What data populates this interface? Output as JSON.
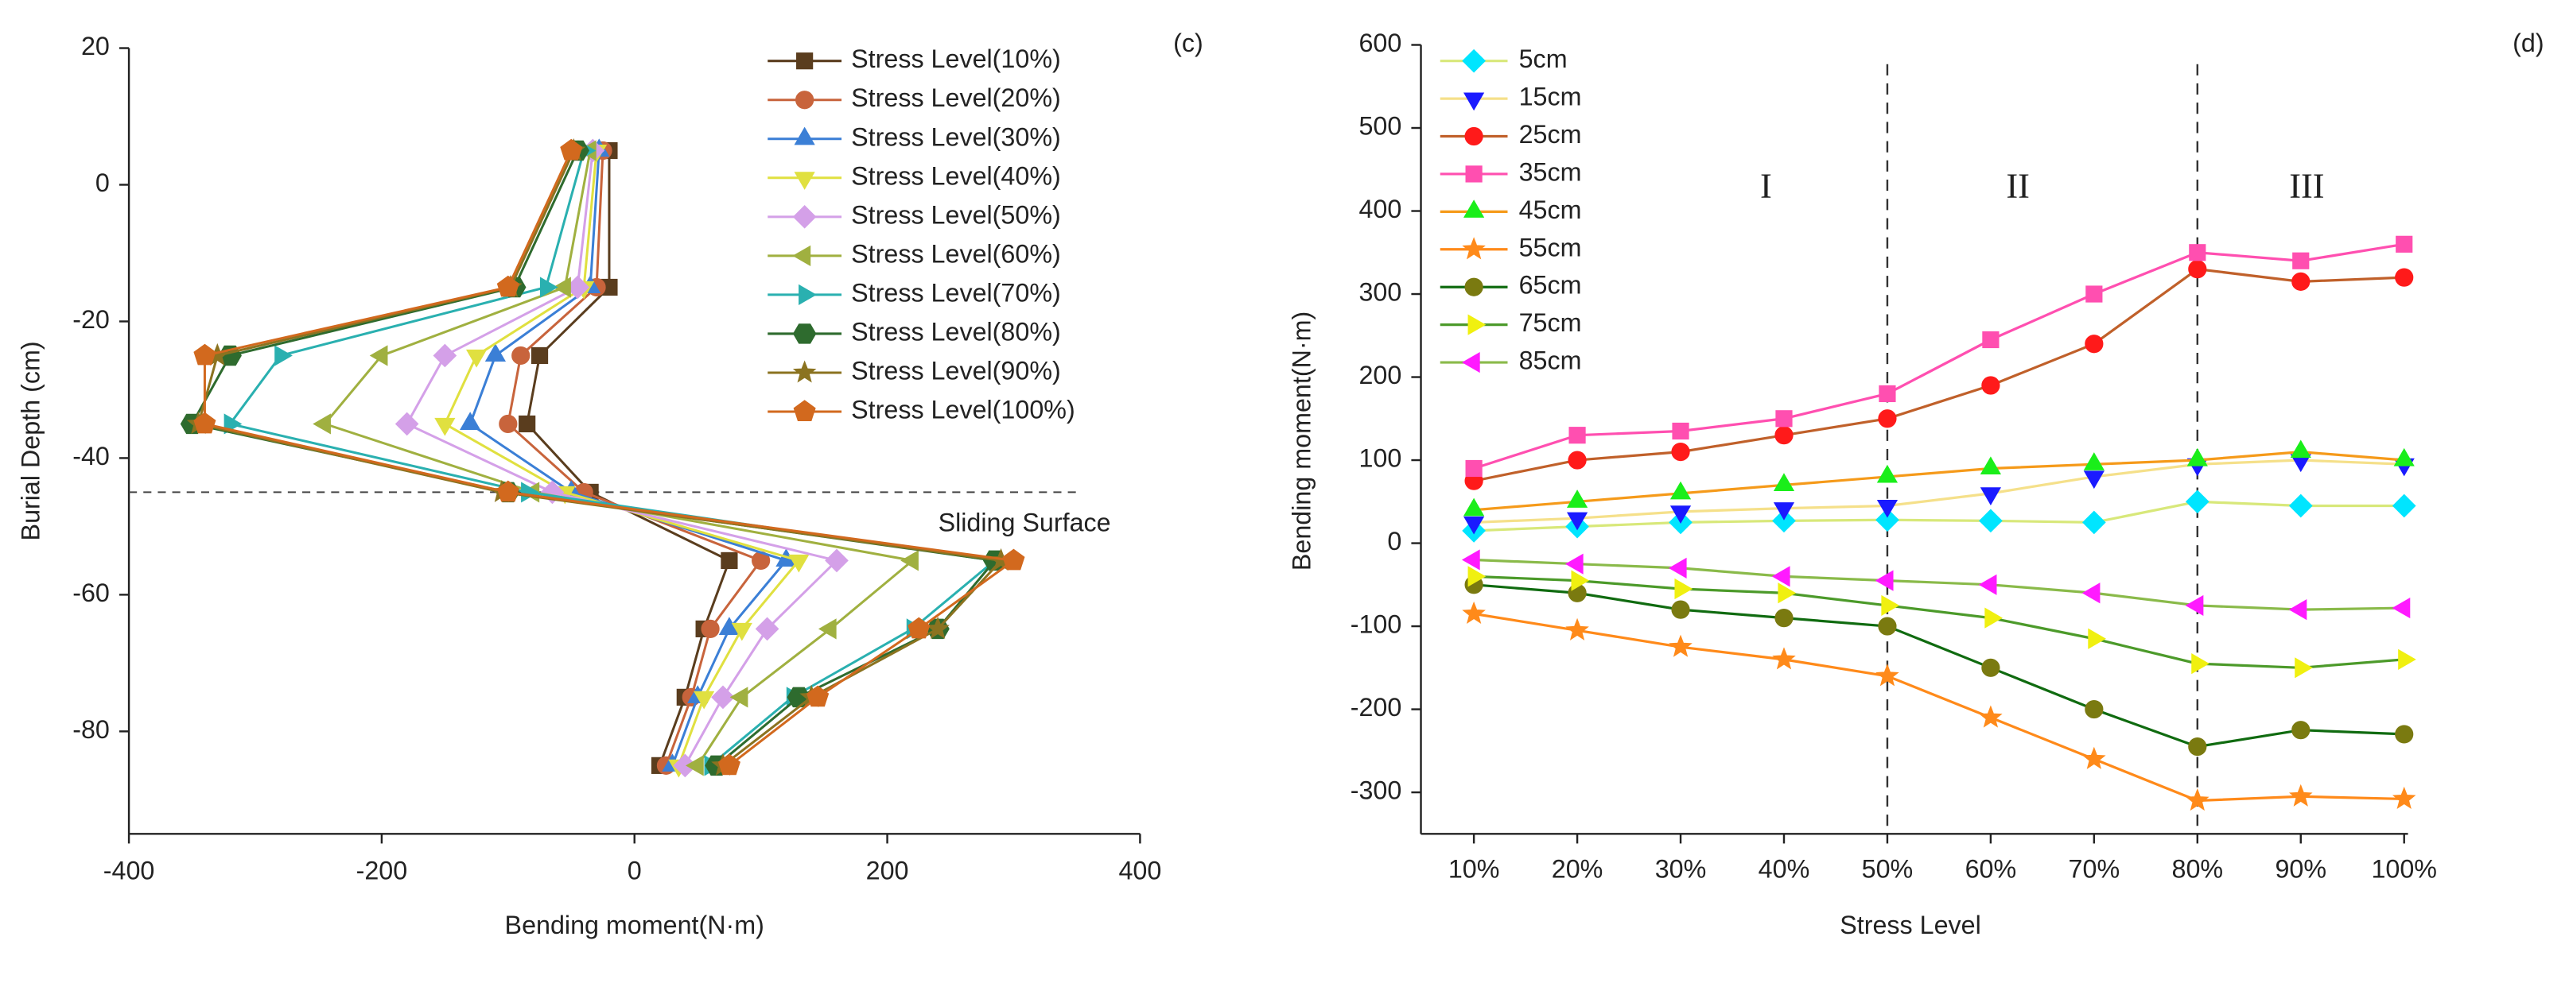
{
  "chart_data": [
    {
      "type": "line",
      "orientation": "horizontal",
      "annotation_label": "(c)",
      "annotation": "Sliding Surface",
      "xlabel": "Bending moment(N·m)",
      "ylabel": "Burial Depth (cm)",
      "xlim": [
        -400,
        400
      ],
      "xticks": [
        -400,
        -200,
        0,
        200,
        400
      ],
      "ylim": [
        -95,
        20
      ],
      "yticks": [
        20,
        0,
        -20,
        -40,
        -60,
        -80
      ],
      "hline": -45,
      "y": [
        5,
        -15,
        -25,
        -35,
        -45,
        -55,
        -65,
        -75,
        -85
      ],
      "series": [
        {
          "name": "Stress Level(10%)",
          "color": "#5a3d1e",
          "marker": "square",
          "values": [
            -20,
            -20,
            -75,
            -85,
            -35,
            75,
            55,
            40,
            20
          ]
        },
        {
          "name": "Stress Level(20%)",
          "color": "#c8643c",
          "marker": "circle",
          "values": [
            -25,
            -30,
            -90,
            -100,
            -40,
            100,
            60,
            45,
            25
          ]
        },
        {
          "name": "Stress Level(30%)",
          "color": "#3b7fd6",
          "marker": "triangle-up",
          "values": [
            -28,
            -35,
            -110,
            -130,
            -50,
            120,
            75,
            50,
            30
          ]
        },
        {
          "name": "Stress Level(40%)",
          "color": "#e0e040",
          "marker": "triangle-down",
          "values": [
            -30,
            -40,
            -125,
            -150,
            -55,
            130,
            85,
            55,
            35
          ]
        },
        {
          "name": "Stress Level(50%)",
          "color": "#d4a0e8",
          "marker": "diamond",
          "values": [
            -33,
            -45,
            -150,
            -180,
            -65,
            160,
            105,
            70,
            40
          ]
        },
        {
          "name": "Stress Level(60%)",
          "color": "#a0b040",
          "marker": "triangle-left",
          "values": [
            -35,
            -55,
            -200,
            -245,
            -80,
            220,
            155,
            85,
            50
          ]
        },
        {
          "name": "Stress Level(70%)",
          "color": "#2ab0b0",
          "marker": "triangle-right",
          "values": [
            -40,
            -70,
            -280,
            -320,
            -85,
            285,
            220,
            125,
            60
          ]
        },
        {
          "name": "Stress Level(80%)",
          "color": "#2e6b2e",
          "marker": "hexagon",
          "values": [
            -45,
            -95,
            -320,
            -350,
            -100,
            285,
            240,
            130,
            65
          ]
        },
        {
          "name": "Stress Level(90%)",
          "color": "#8b7320",
          "marker": "star",
          "values": [
            -48,
            -98,
            -330,
            -345,
            -105,
            290,
            240,
            140,
            70
          ]
        },
        {
          "name": "Stress Level(100%)",
          "color": "#d2691e",
          "marker": "pentagon",
          "values": [
            -50,
            -100,
            -340,
            -340,
            -100,
            300,
            225,
            145,
            75
          ]
        }
      ]
    },
    {
      "type": "line",
      "annotation_label": "(d)",
      "xlabel": "Stress Level",
      "ylabel": "Bending moment(N·m)",
      "categories": [
        "10%",
        "20%",
        "30%",
        "40%",
        "50%",
        "60%",
        "70%",
        "80%",
        "90%",
        "100%"
      ],
      "ylim": [
        -350,
        600
      ],
      "yticks": [
        -300,
        -200,
        -100,
        0,
        100,
        200,
        300,
        400,
        500,
        600
      ],
      "vlines": [
        "50%",
        "80%"
      ],
      "regions": [
        "I",
        "II",
        "III"
      ],
      "series": [
        {
          "name": "5cm",
          "color": "#00e5ff",
          "line_color": "#d8e87a",
          "marker": "diamond",
          "values": [
            15,
            20,
            25,
            27,
            28,
            27,
            25,
            50,
            45,
            45
          ]
        },
        {
          "name": "15cm",
          "color": "#1a1aff",
          "line_color": "#f5e08a",
          "marker": "triangle-down",
          "values": [
            25,
            30,
            38,
            42,
            45,
            60,
            80,
            95,
            100,
            95
          ]
        },
        {
          "name": "25cm",
          "color": "#ff1a1a",
          "line_color": "#c0602a",
          "marker": "circle",
          "values": [
            75,
            100,
            110,
            130,
            150,
            190,
            240,
            330,
            315,
            320
          ]
        },
        {
          "name": "35cm",
          "color": "#ff4fb0",
          "line_color": "#ff4fb0",
          "marker": "square",
          "values": [
            90,
            130,
            135,
            150,
            180,
            245,
            300,
            350,
            340,
            360
          ]
        },
        {
          "name": "45cm",
          "color": "#1aee1a",
          "line_color": "#f59a1a",
          "marker": "triangle-up",
          "values": [
            40,
            50,
            60,
            70,
            80,
            90,
            95,
            100,
            110,
            100
          ]
        },
        {
          "name": "55cm",
          "color": "#ff8a1a",
          "line_color": "#ff8a1a",
          "marker": "star",
          "values": [
            -85,
            -105,
            -125,
            -140,
            -160,
            -210,
            -260,
            -310,
            -305,
            -308
          ]
        },
        {
          "name": "65cm",
          "color": "#7a7a10",
          "line_color": "#106b10",
          "marker": "circle",
          "values": [
            -50,
            -60,
            -80,
            -90,
            -100,
            -150,
            -200,
            -245,
            -225,
            -230
          ]
        },
        {
          "name": "75cm",
          "color": "#f0f010",
          "line_color": "#4c9a2a",
          "marker": "triangle-right",
          "values": [
            -40,
            -45,
            -55,
            -60,
            -75,
            -90,
            -115,
            -145,
            -150,
            -140
          ]
        },
        {
          "name": "85cm",
          "color": "#ff1aff",
          "line_color": "#8aba4a",
          "marker": "triangle-left",
          "values": [
            -20,
            -25,
            -30,
            -40,
            -45,
            -50,
            -60,
            -75,
            -80,
            -78
          ]
        }
      ]
    }
  ]
}
